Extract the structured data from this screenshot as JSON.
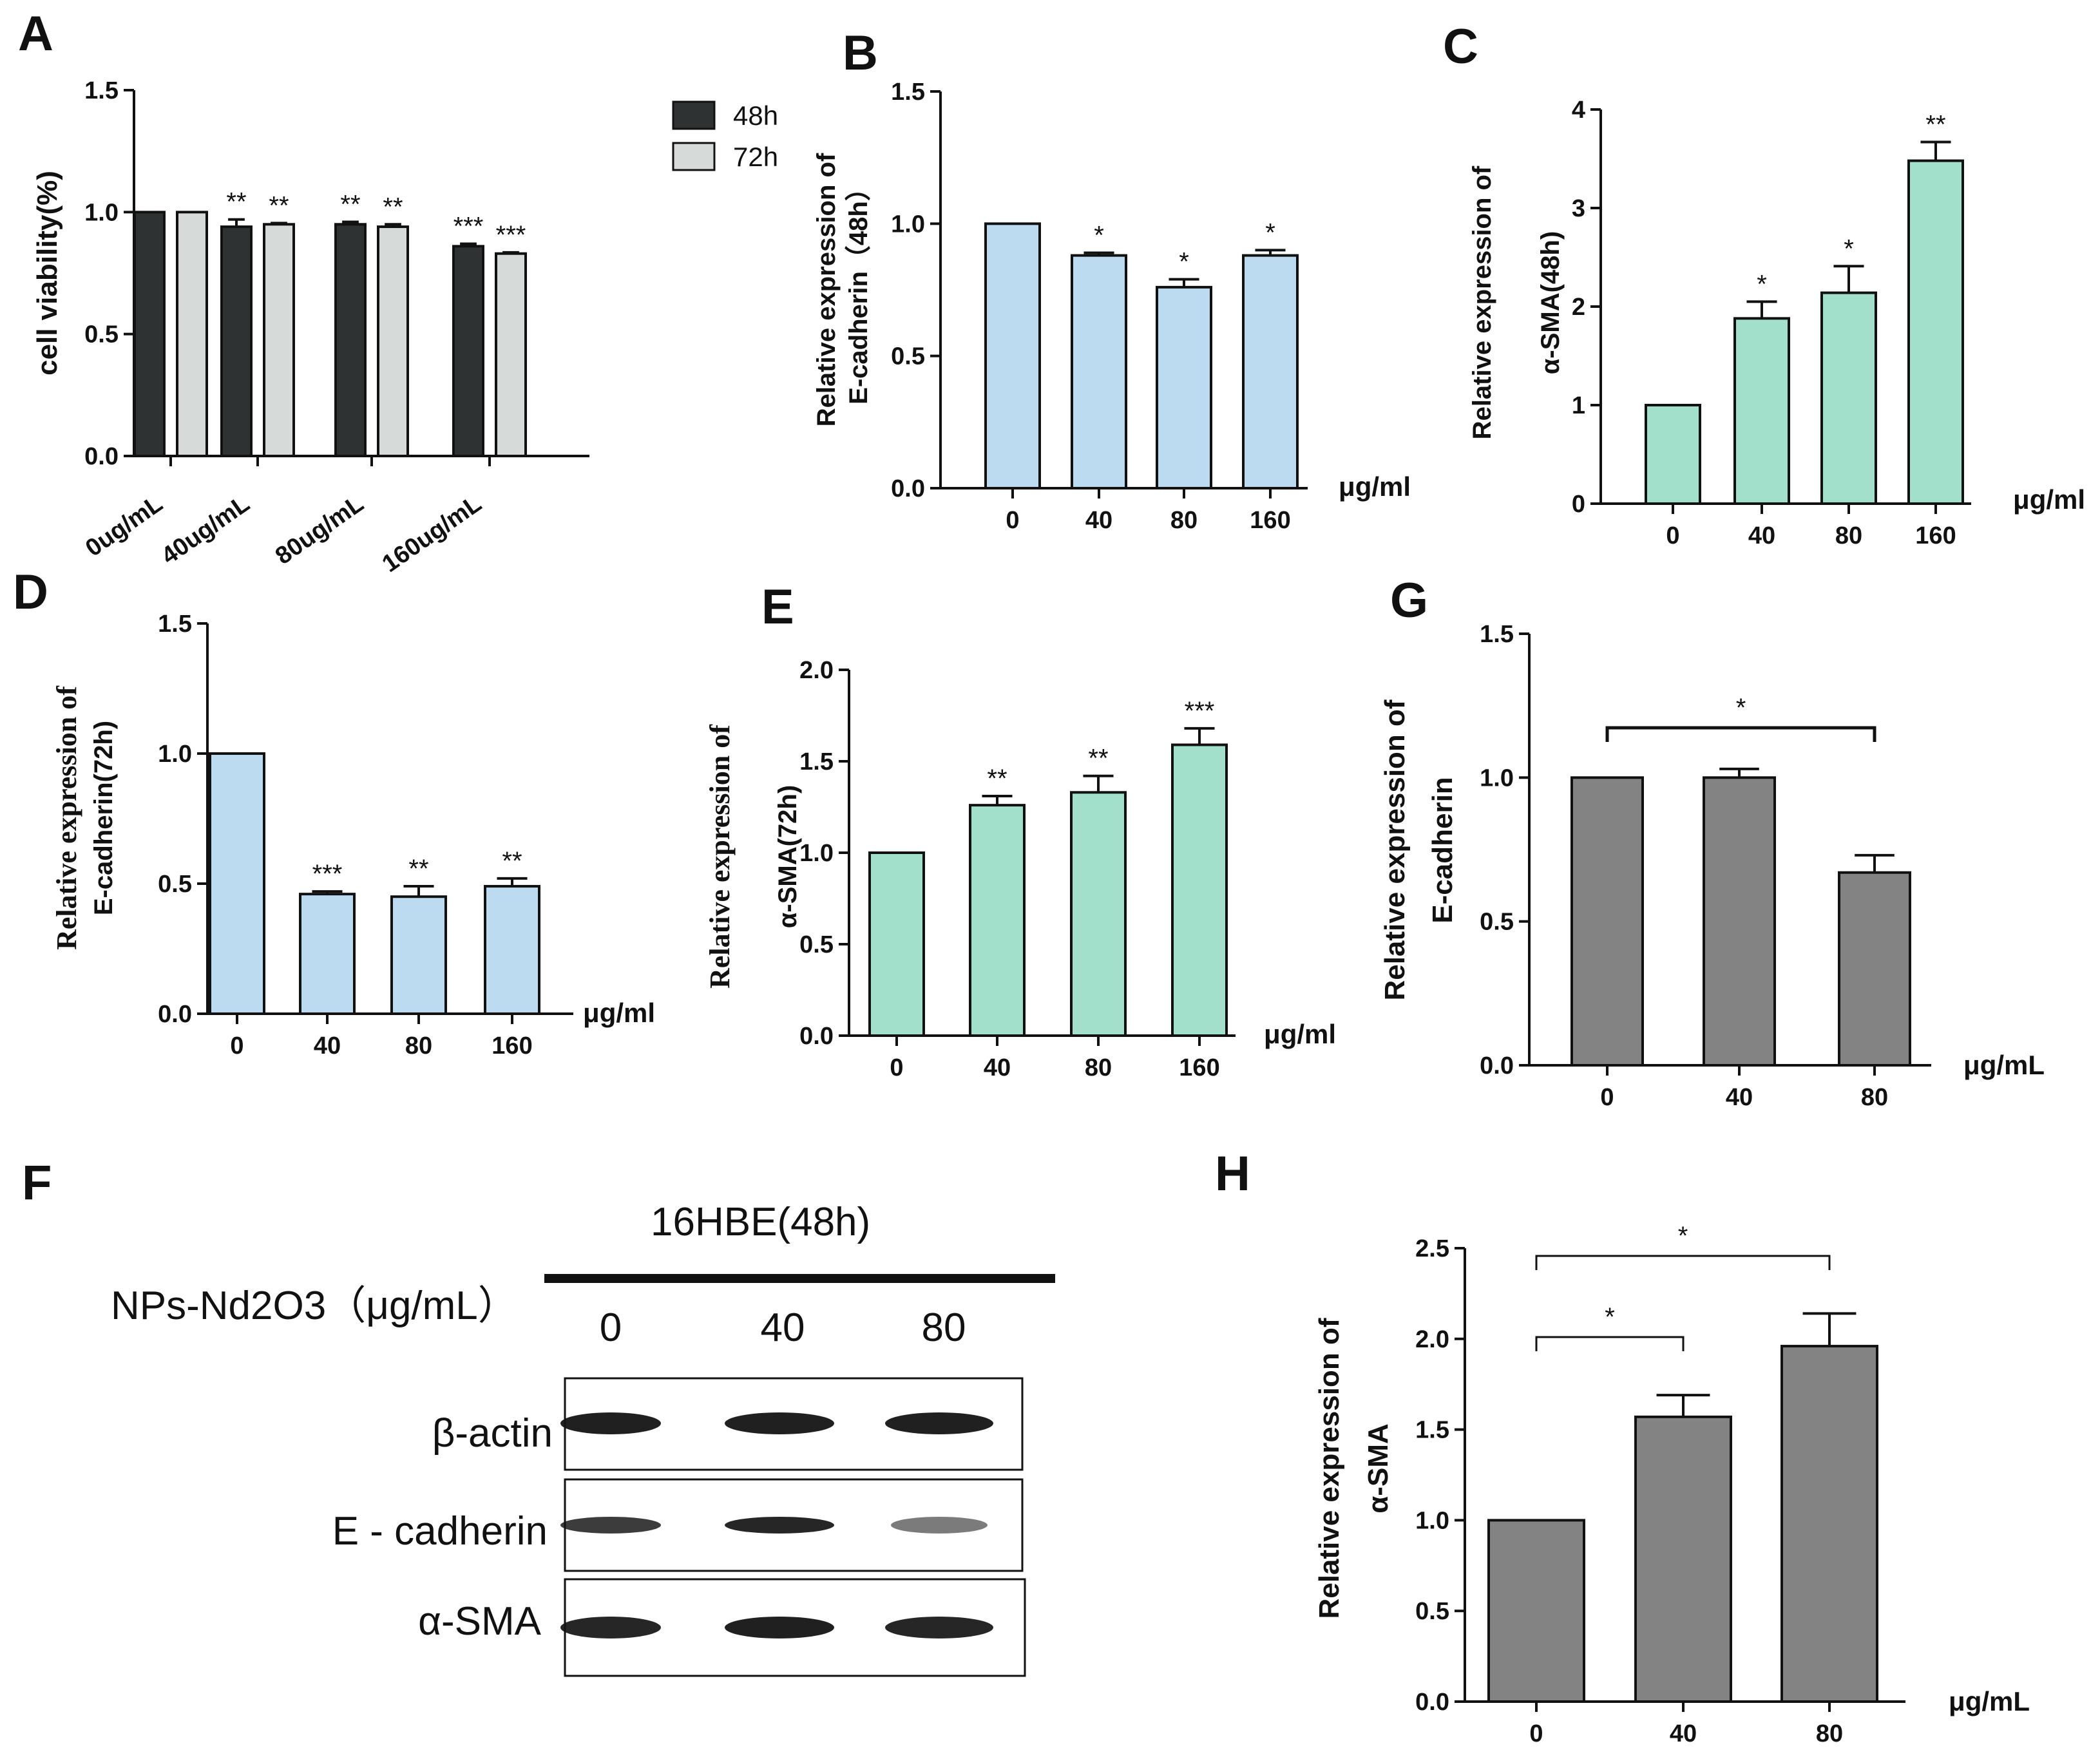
{
  "panel_letters": {
    "A": "A",
    "B": "B",
    "C": "C",
    "D": "D",
    "E": "E",
    "F": "F",
    "G": "G",
    "H": "H"
  },
  "colors": {
    "dark": "#2f3232",
    "light_gray": "#d6dad9",
    "blue": "#bcdaf0",
    "green": "#a3e0cc",
    "gray": "#838383",
    "axis": "#111111"
  },
  "chart_data": [
    {
      "id": "A",
      "type": "bar",
      "title": "",
      "ylabel": "cell viability(%)",
      "xlabel": "",
      "categories": [
        "0ug/mL",
        "40ug/mL",
        "80ug/mL",
        "160ug/mL"
      ],
      "series": [
        {
          "name": "48h",
          "values": [
            1.0,
            0.94,
            0.95,
            0.86
          ],
          "errors": [
            0.0,
            0.03,
            0.01,
            0.01
          ],
          "stars": [
            "",
            "**",
            "**",
            "***"
          ]
        },
        {
          "name": "72h",
          "values": [
            1.0,
            0.95,
            0.94,
            0.83
          ],
          "errors": [
            0.0,
            0.005,
            0.01,
            0.005
          ],
          "stars": [
            "",
            "**",
            "**",
            "***"
          ]
        }
      ],
      "ylim": [
        0,
        1.5
      ],
      "yticks": [
        "0.0",
        "0.5",
        "1.0",
        "1.5"
      ]
    },
    {
      "id": "B",
      "type": "bar",
      "ylabel_lines": [
        "Relative expression of",
        "E-cadherin（48h）"
      ],
      "unit": "μg/ml",
      "categories": [
        "0",
        "40",
        "80",
        "160"
      ],
      "values": [
        1.0,
        0.88,
        0.76,
        0.88
      ],
      "errors": [
        0.0,
        0.01,
        0.03,
        0.02
      ],
      "stars": [
        "",
        "*",
        "*",
        "*"
      ],
      "ylim": [
        0,
        1.5
      ],
      "yticks": [
        "0.0",
        "0.5",
        "1.0",
        "1.5"
      ]
    },
    {
      "id": "C",
      "type": "bar",
      "ylabel_lines": [
        "Relative expression of",
        "α-SMA(48h)"
      ],
      "unit": "μg/ml",
      "categories": [
        "0",
        "40",
        "80",
        "160"
      ],
      "values": [
        1.0,
        1.88,
        2.14,
        3.48
      ],
      "errors": [
        0.0,
        0.17,
        0.27,
        0.19
      ],
      "stars": [
        "",
        "*",
        "*",
        "**"
      ],
      "ylim": [
        0,
        4
      ],
      "yticks": [
        "0",
        "1",
        "2",
        "3",
        "4"
      ]
    },
    {
      "id": "D",
      "type": "bar",
      "ylabel_lines": [
        "Relative expression of",
        "E-cadherin(72h)"
      ],
      "unit": "μg/ml",
      "categories": [
        "0",
        "40",
        "80",
        "160"
      ],
      "values": [
        1.0,
        0.46,
        0.45,
        0.49
      ],
      "errors": [
        0.0,
        0.01,
        0.04,
        0.03
      ],
      "stars": [
        "",
        "***",
        "**",
        "**"
      ],
      "ylim": [
        0,
        1.5
      ],
      "yticks": [
        "0.0",
        "0.5",
        "1.0",
        "1.5"
      ]
    },
    {
      "id": "E",
      "type": "bar",
      "ylabel_lines": [
        "Relative expression of",
        "α-SMA(72h)"
      ],
      "unit": "μg/ml",
      "categories": [
        "0",
        "40",
        "80",
        "160"
      ],
      "values": [
        1.0,
        1.26,
        1.33,
        1.59
      ],
      "errors": [
        0.0,
        0.05,
        0.09,
        0.09
      ],
      "stars": [
        "",
        "**",
        "**",
        "***"
      ],
      "ylim": [
        0,
        2.0
      ],
      "yticks": [
        "0.0",
        "0.5",
        "1.0",
        "1.5",
        "2.0"
      ]
    },
    {
      "id": "G",
      "type": "bar",
      "ylabel_lines": [
        "Relative expression of",
        "E-cadherin"
      ],
      "unit": "μg/mL",
      "categories": [
        "0",
        "40",
        "80"
      ],
      "values": [
        1.0,
        1.0,
        0.67
      ],
      "errors": [
        0.0,
        0.03,
        0.06
      ],
      "brackets": [
        {
          "from": 0,
          "to": 2,
          "label": "*"
        }
      ],
      "ylim": [
        0,
        1.5
      ],
      "yticks": [
        "0.0",
        "0.5",
        "1.0",
        "1.5"
      ]
    },
    {
      "id": "H",
      "type": "bar",
      "ylabel_lines": [
        "Relative expression of",
        "α-SMA"
      ],
      "unit": "μg/mL",
      "categories": [
        "0",
        "40",
        "80"
      ],
      "values": [
        1.0,
        1.57,
        1.96
      ],
      "errors": [
        0.0,
        0.12,
        0.18
      ],
      "brackets": [
        {
          "from": 0,
          "to": 1,
          "label": "*"
        },
        {
          "from": 0,
          "to": 2,
          "label": "*"
        }
      ],
      "ylim": [
        0,
        2.5
      ],
      "yticks": [
        "0.0",
        "0.5",
        "1.0",
        "1.5",
        "2.0",
        "2.5"
      ]
    }
  ],
  "blot": {
    "cell_line": "16HBE(48h)",
    "treatment_label": "NPs-Nd2O3（μg/mL）",
    "doses": [
      "0",
      "40",
      "80"
    ],
    "proteins": [
      "β-actin",
      "E - cadherin",
      "α-SMA"
    ],
    "band_intensity": [
      [
        1.0,
        1.0,
        1.0
      ],
      [
        0.8,
        0.95,
        0.35
      ],
      [
        0.95,
        1.0,
        0.95
      ]
    ]
  }
}
